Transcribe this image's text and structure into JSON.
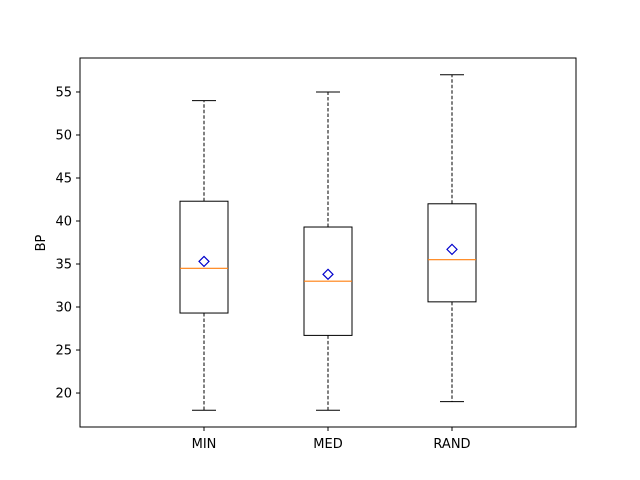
{
  "chart_data": {
    "type": "boxplot",
    "title": "",
    "xlabel": "",
    "ylabel": "BP",
    "ylim": [
      16.05,
      58.95
    ],
    "yticks": [
      20,
      25,
      30,
      35,
      40,
      45,
      50,
      55
    ],
    "grid": false,
    "categories": [
      "MIN",
      "MED",
      "RAND"
    ],
    "boxes": [
      {
        "label": "MIN",
        "whisker_low": 18,
        "q1": 29.3,
        "median": 34.5,
        "q3": 42.3,
        "whisker_high": 54,
        "mean": 35.3
      },
      {
        "label": "MED",
        "whisker_low": 18,
        "q1": 26.7,
        "median": 33.0,
        "q3": 39.3,
        "whisker_high": 55,
        "mean": 33.8
      },
      {
        "label": "RAND",
        "whisker_low": 19,
        "q1": 30.6,
        "median": 35.5,
        "q3": 42.0,
        "whisker_high": 57,
        "mean": 36.7
      }
    ],
    "colors": {
      "box": "#000000",
      "median": "#ff7f0e",
      "mean_marker": "#0000cc",
      "whisker": "#000000"
    }
  }
}
